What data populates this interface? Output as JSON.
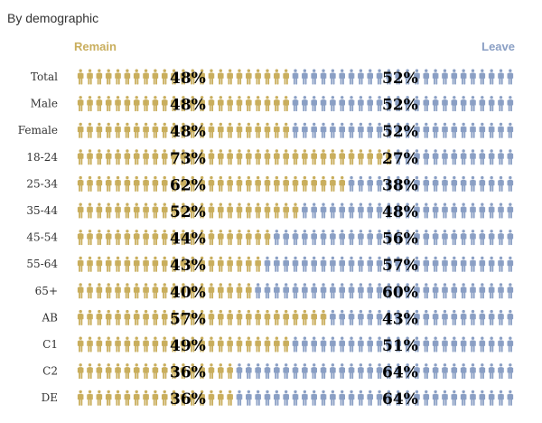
{
  "title": "By demographic",
  "legend": {
    "remain": "Remain",
    "leave": "Leave"
  },
  "colors": {
    "remain": "#c9ae5d",
    "leave": "#8a9fc4"
  },
  "chart_data": {
    "type": "bar",
    "title": "By demographic",
    "stacked": true,
    "orientation": "horizontal",
    "categories": [
      "Total",
      "Male",
      "Female",
      "18-24",
      "25-34",
      "35-44",
      "45-54",
      "55-64",
      "65+",
      "AB",
      "C1",
      "C2",
      "DE"
    ],
    "series": [
      {
        "name": "Remain",
        "values": [
          48,
          48,
          48,
          73,
          62,
          52,
          44,
          43,
          40,
          57,
          49,
          36,
          36
        ]
      },
      {
        "name": "Leave",
        "values": [
          52,
          52,
          52,
          27,
          38,
          48,
          56,
          57,
          60,
          43,
          51,
          64,
          64
        ]
      }
    ],
    "data_labels": {
      "remain": [
        "48%",
        "48%",
        "48%",
        "73%",
        "62%",
        "52%",
        "44%",
        "43%",
        "40%",
        "57%",
        "49%",
        "36%",
        "36%"
      ],
      "leave": [
        "52%",
        "52%",
        "52%",
        "27%",
        "38%",
        "48%",
        "56%",
        "57%",
        "60%",
        "43%",
        "51%",
        "64%",
        "64%"
      ]
    },
    "xlim": [
      0,
      100
    ],
    "legend_position": "top",
    "grid": false
  }
}
